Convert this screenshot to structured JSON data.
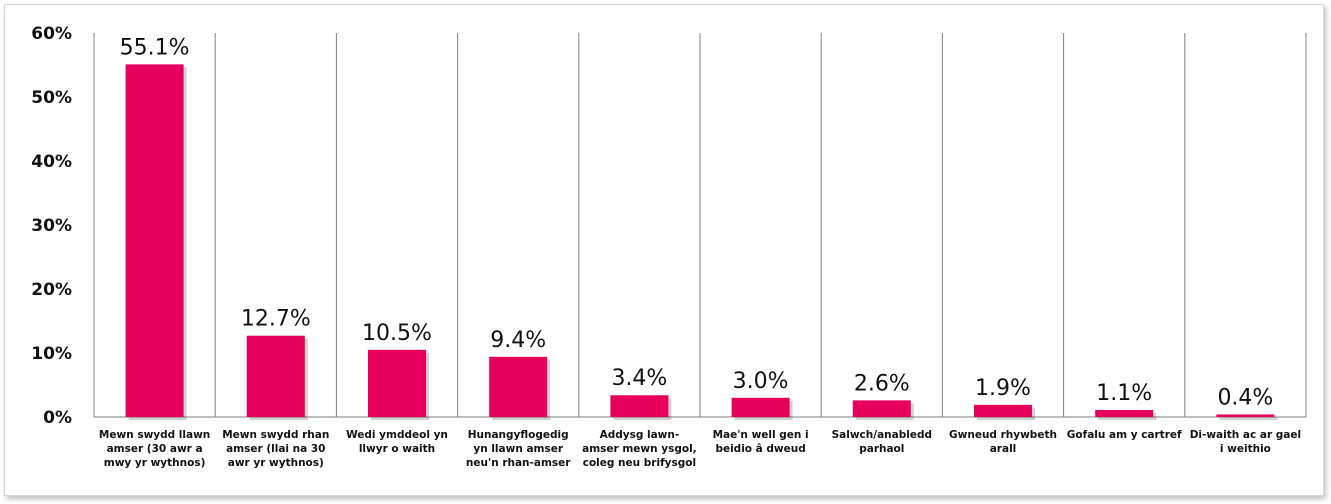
{
  "chart_data": {
    "type": "bar",
    "title": "",
    "xlabel": "",
    "ylabel": "",
    "ylim": [
      0,
      60
    ],
    "y_ticks": [
      "0%",
      "10%",
      "20%",
      "30%",
      "40%",
      "50%",
      "60%"
    ],
    "y_tick_values": [
      0,
      10,
      20,
      30,
      40,
      50,
      60
    ],
    "grid": "vertical separators between categories",
    "legend": "none",
    "bar_color": "#e6005c",
    "categories": [
      [
        "Mewn swydd llawn",
        "amser (30 awr a",
        "mwy yr wythnos)"
      ],
      [
        "Mewn swydd rhan",
        "amser (llai na 30",
        "awr yr wythnos)"
      ],
      [
        "Wedi ymddeol yn",
        "llwyr o waith"
      ],
      [
        "Hunangyflogedig",
        "yn llawn amser",
        "neu'n rhan-amser"
      ],
      [
        "Addysg lawn-",
        "amser mewn ysgol,",
        "coleg neu brifysgol"
      ],
      [
        "Mae'n well gen i",
        "beidio â dweud"
      ],
      [
        "Salwch/anabledd",
        "parhaol"
      ],
      [
        "Gwneud rhywbeth",
        "arall"
      ],
      [
        "Gofalu am y cartref"
      ],
      [
        "Di-waith ac ar gael",
        "i weithio"
      ]
    ],
    "values": [
      55.1,
      12.7,
      10.5,
      9.4,
      3.4,
      3.0,
      2.6,
      1.9,
      1.1,
      0.4
    ],
    "data_labels": [
      "55.1%",
      "12.7%",
      "10.5%",
      "9.4%",
      "3.4%",
      "3.0%",
      "2.6%",
      "1.9%",
      "1.1%",
      "0.4%"
    ]
  }
}
